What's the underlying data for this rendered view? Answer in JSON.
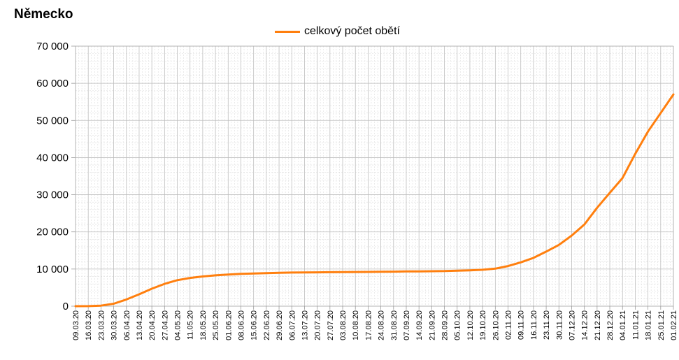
{
  "chart_data": {
    "type": "line",
    "title": "Německo",
    "xlabel": "",
    "ylabel": "",
    "ylim": [
      0,
      70000
    ],
    "y_ticks": [
      "0",
      "10 000",
      "20 000",
      "30 000",
      "40 000",
      "50 000",
      "60 000",
      "70 000"
    ],
    "grid": true,
    "legend_position": "top-center",
    "x_ticks": [
      "09.03.20",
      "16.03.20",
      "23.03.20",
      "30.03.20",
      "06.04.20",
      "13.04.20",
      "20.04.20",
      "27.04.20",
      "04.05.20",
      "11.05.20",
      "18.05.20",
      "25.05.20",
      "01.06.20",
      "08.06.20",
      "15.06.20",
      "22.06.20",
      "29.06.20",
      "06.07.20",
      "13.07.20",
      "20.07.20",
      "27.07.20",
      "03.08.20",
      "10.08.20",
      "17.08.20",
      "24.08.20",
      "31.08.20",
      "07.09.20",
      "14.09.20",
      "21.09.20",
      "28.09.20",
      "05.10.20",
      "12.10.20",
      "19.10.20",
      "26.10.20",
      "02.11.20",
      "09.11.20",
      "16.11.20",
      "23.11.20",
      "30.11.20",
      "07.12.20",
      "14.12.20",
      "21.12.20",
      "28.12.20",
      "04.01.21",
      "11.01.21",
      "18.01.21",
      "25.01.21",
      "01.02.21"
    ],
    "series": [
      {
        "name": "celkový počet obětí",
        "color": "#ff7f0e",
        "x": [
          "09.03.20",
          "16.03.20",
          "23.03.20",
          "30.03.20",
          "06.04.20",
          "13.04.20",
          "20.04.20",
          "27.04.20",
          "04.05.20",
          "11.05.20",
          "18.05.20",
          "25.05.20",
          "01.06.20",
          "08.06.20",
          "15.06.20",
          "22.06.20",
          "29.06.20",
          "06.07.20",
          "13.07.20",
          "20.07.20",
          "27.07.20",
          "03.08.20",
          "10.08.20",
          "17.08.20",
          "24.08.20",
          "31.08.20",
          "07.09.20",
          "14.09.20",
          "21.09.20",
          "28.09.20",
          "05.10.20",
          "12.10.20",
          "19.10.20",
          "26.10.20",
          "02.11.20",
          "09.11.20",
          "16.11.20",
          "23.11.20",
          "30.11.20",
          "07.12.20",
          "14.12.20",
          "21.12.20",
          "28.12.20",
          "04.01.21",
          "11.01.21",
          "18.01.21",
          "25.01.21",
          "01.02.21"
        ],
        "values": [
          0,
          20,
          150,
          650,
          1800,
          3200,
          4700,
          6000,
          7000,
          7600,
          8000,
          8300,
          8500,
          8700,
          8800,
          8900,
          9000,
          9050,
          9070,
          9100,
          9150,
          9170,
          9200,
          9220,
          9250,
          9300,
          9350,
          9380,
          9400,
          9450,
          9550,
          9650,
          9800,
          10100,
          10800,
          11800,
          13000,
          14700,
          16500,
          19000,
          22000,
          26500,
          30500,
          34500,
          41000,
          47000,
          52000,
          57000
        ]
      }
    ]
  }
}
